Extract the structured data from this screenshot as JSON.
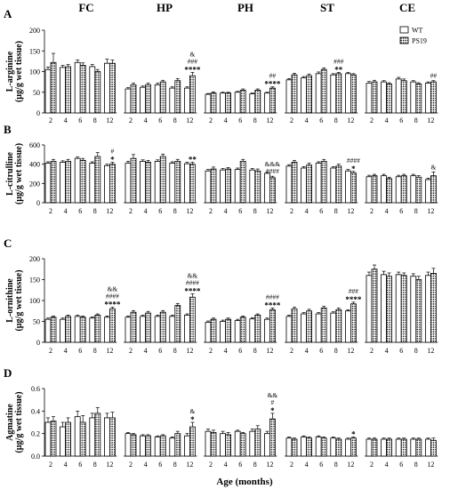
{
  "regions": [
    "FC",
    "HP",
    "PH",
    "ST",
    "CE"
  ],
  "ages": [
    "2",
    "4",
    "6",
    "8",
    "12"
  ],
  "xlabel": "Age (months)",
  "legend": [
    {
      "name": "WT"
    },
    {
      "name": "PS19"
    }
  ],
  "chart_data": [
    {
      "type": "bar",
      "panel": "A",
      "ylabel_lines": [
        "L-arginine",
        "(µg/g wet tissue)"
      ],
      "ylim": [
        0,
        200
      ],
      "yticks": [
        0,
        50,
        100,
        150,
        200
      ],
      "series": [
        {
          "name": "WT",
          "values": [
            105,
            110,
            122,
            112,
            120,
            58,
            62,
            68,
            60,
            60,
            45,
            48,
            50,
            46,
            48,
            80,
            85,
            95,
            92,
            95,
            72,
            75,
            82,
            75,
            72
          ]
        },
        {
          "name": "PS19",
          "values": [
            122,
            112,
            115,
            100,
            120,
            68,
            68,
            75,
            78,
            90,
            48,
            48,
            55,
            55,
            60,
            92,
            90,
            105,
            95,
            92,
            75,
            70,
            78,
            70,
            75
          ]
        }
      ],
      "errors": [
        [
          6,
          5,
          6,
          5,
          10,
          3,
          3,
          4,
          3,
          3,
          2,
          2,
          2,
          2,
          2,
          3,
          3,
          4,
          3,
          3,
          4,
          3,
          4,
          3,
          3
        ],
        [
          22,
          5,
          6,
          5,
          8,
          4,
          4,
          4,
          5,
          8,
          3,
          2,
          3,
          3,
          3,
          4,
          4,
          4,
          3,
          3,
          4,
          3,
          4,
          3,
          3
        ]
      ],
      "annotations": [
        {
          "index": 9,
          "lines": [
            "&",
            "###",
            "****"
          ]
        },
        {
          "index": 14,
          "lines": [
            "##",
            "****"
          ]
        },
        {
          "index": 18,
          "lines": [
            "###",
            "**"
          ]
        },
        {
          "index": 24,
          "lines": [
            "##"
          ]
        }
      ]
    },
    {
      "type": "bar",
      "panel": "B",
      "ylabel_lines": [
        "L-citrulline",
        "(µg/g wet tissue)"
      ],
      "ylim": [
        0,
        600
      ],
      "yticks": [
        0,
        200,
        400,
        600
      ],
      "series": [
        {
          "name": "WT",
          "values": [
            410,
            420,
            460,
            410,
            385,
            410,
            430,
            430,
            410,
            405,
            330,
            340,
            345,
            340,
            305,
            380,
            360,
            410,
            360,
            330,
            270,
            280,
            270,
            280,
            240
          ]
        },
        {
          "name": "PS19",
          "values": [
            430,
            430,
            440,
            480,
            400,
            460,
            420,
            480,
            430,
            400,
            350,
            350,
            430,
            330,
            260,
            420,
            390,
            430,
            380,
            310,
            280,
            250,
            280,
            265,
            280
          ]
        }
      ],
      "errors": [
        [
          15,
          15,
          15,
          15,
          15,
          20,
          15,
          15,
          15,
          15,
          15,
          15,
          15,
          15,
          15,
          15,
          15,
          15,
          15,
          15,
          15,
          15,
          15,
          15,
          15
        ],
        [
          20,
          20,
          20,
          40,
          20,
          40,
          20,
          25,
          20,
          20,
          20,
          15,
          20,
          20,
          15,
          20,
          20,
          20,
          20,
          15,
          15,
          15,
          15,
          15,
          40
        ]
      ],
      "annotations": [
        {
          "index": 4,
          "lines": [
            "#",
            "*"
          ]
        },
        {
          "index": 9,
          "lines": [
            "**"
          ]
        },
        {
          "index": 14,
          "lines": [
            "&&&",
            "####"
          ]
        },
        {
          "index": 19,
          "lines": [
            "####",
            "*"
          ]
        },
        {
          "index": 24,
          "lines": [
            "&"
          ]
        }
      ]
    },
    {
      "type": "bar",
      "panel": "C",
      "ylabel_lines": [
        "L-ornithine",
        "(µg/g wet tissue)"
      ],
      "ylim": [
        0,
        200
      ],
      "yticks": [
        0,
        50,
        100,
        150,
        200
      ],
      "series": [
        {
          "name": "WT",
          "values": [
            55,
            55,
            62,
            58,
            60,
            60,
            62,
            62,
            62,
            65,
            48,
            50,
            52,
            56,
            55,
            62,
            68,
            68,
            70,
            75,
            160,
            162,
            162,
            158,
            160
          ]
        },
        {
          "name": "PS19",
          "values": [
            60,
            62,
            60,
            65,
            80,
            72,
            70,
            72,
            88,
            108,
            55,
            55,
            60,
            65,
            78,
            80,
            75,
            82,
            78,
            92,
            175,
            158,
            160,
            150,
            165
          ]
        }
      ],
      "errors": [
        [
          3,
          3,
          3,
          3,
          3,
          3,
          3,
          3,
          3,
          3,
          3,
          3,
          3,
          3,
          3,
          3,
          3,
          3,
          3,
          3,
          8,
          8,
          6,
          6,
          8
        ],
        [
          3,
          3,
          3,
          3,
          4,
          4,
          4,
          4,
          5,
          8,
          3,
          3,
          3,
          3,
          4,
          4,
          4,
          4,
          4,
          4,
          10,
          8,
          6,
          8,
          12
        ]
      ],
      "annotations": [
        {
          "index": 4,
          "lines": [
            "&&",
            "####",
            "****"
          ]
        },
        {
          "index": 9,
          "lines": [
            "&&",
            "####",
            "****"
          ]
        },
        {
          "index": 14,
          "lines": [
            "####",
            "****"
          ]
        },
        {
          "index": 19,
          "lines": [
            "###",
            "****"
          ]
        }
      ]
    },
    {
      "type": "bar",
      "panel": "D",
      "ylabel_lines": [
        "Agmatine",
        "(µg/g wet tissue)"
      ],
      "ylim": [
        0,
        0.6
      ],
      "yticks": [
        "0.0",
        "0.2",
        "0.4",
        "0.6"
      ],
      "series": [
        {
          "name": "WT",
          "values": [
            0.3,
            0.26,
            0.35,
            0.34,
            0.34,
            0.2,
            0.18,
            0.17,
            0.16,
            0.18,
            0.22,
            0.2,
            0.22,
            0.22,
            0.2,
            0.16,
            0.17,
            0.17,
            0.16,
            0.15,
            0.15,
            0.15,
            0.15,
            0.15,
            0.15
          ]
        },
        {
          "name": "PS19",
          "values": [
            0.31,
            0.3,
            0.3,
            0.38,
            0.34,
            0.19,
            0.18,
            0.18,
            0.2,
            0.26,
            0.21,
            0.19,
            0.2,
            0.24,
            0.33,
            0.15,
            0.16,
            0.16,
            0.15,
            0.16,
            0.15,
            0.15,
            0.15,
            0.15,
            0.14
          ]
        }
      ],
      "errors": [
        [
          0.04,
          0.04,
          0.05,
          0.04,
          0.04,
          0.01,
          0.01,
          0.01,
          0.01,
          0.02,
          0.02,
          0.02,
          0.01,
          0.02,
          0.02,
          0.01,
          0.01,
          0.01,
          0.01,
          0.01,
          0.01,
          0.01,
          0.01,
          0.01,
          0.01
        ],
        [
          0.04,
          0.04,
          0.06,
          0.05,
          0.05,
          0.01,
          0.01,
          0.01,
          0.02,
          0.04,
          0.02,
          0.02,
          0.01,
          0.03,
          0.05,
          0.01,
          0.01,
          0.01,
          0.01,
          0.01,
          0.01,
          0.01,
          0.01,
          0.01,
          0.02
        ]
      ],
      "annotations": [
        {
          "index": 9,
          "lines": [
            "&",
            "*"
          ]
        },
        {
          "index": 14,
          "lines": [
            "&&",
            "#",
            "*"
          ]
        },
        {
          "index": 19,
          "lines": [
            "*"
          ]
        }
      ]
    }
  ]
}
